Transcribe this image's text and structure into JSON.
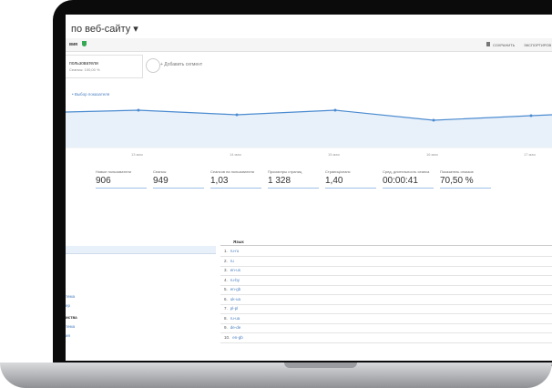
{
  "header": {
    "title": "по веб-сайту ▾",
    "view": "вия",
    "save": "СОХРАНИТЬ",
    "export": "ЭКСПОРТИРОВ"
  },
  "segments": [
    {
      "name": "пользователи",
      "share": "Сеансы: 100,00 %"
    },
    {
      "name": "+ Добавить сегмент"
    }
  ],
  "chart": {
    "metric_selector": "•  Выбор показателя",
    "dates": [
      "13 мая",
      "14 мая",
      "15 мая",
      "16 мая",
      "17 мая"
    ]
  },
  "metrics": [
    {
      "label": "Новые пользователи",
      "value": "906"
    },
    {
      "label": "Сеансы",
      "value": "949"
    },
    {
      "label": "Сеансов на пользователя",
      "value": "1,03"
    },
    {
      "label": "Просмотры страниц",
      "value": "1 328"
    },
    {
      "label": "Страниц/сеанс",
      "value": "1,40"
    },
    {
      "label": "Сред. длительность сеанса",
      "value": "00:00:41"
    },
    {
      "label": "Показатель отказов",
      "value": "70,50 %"
    }
  ],
  "left_list": [
    "тема",
    "ер",
    "иства",
    "тема",
    "ия"
  ],
  "table": {
    "header": "Язык",
    "rows": [
      [
        "1.",
        "ru-ru"
      ],
      [
        "2.",
        "ru"
      ],
      [
        "3.",
        "en-us"
      ],
      [
        "4.",
        "ru-by"
      ],
      [
        "5.",
        "en-gb"
      ],
      [
        "6.",
        "uk-ua"
      ],
      [
        "7.",
        "pl-pl"
      ],
      [
        "8.",
        "ru-ua"
      ],
      [
        "9.",
        "de-de"
      ],
      [
        "10.",
        "en-gb"
      ]
    ]
  }
}
